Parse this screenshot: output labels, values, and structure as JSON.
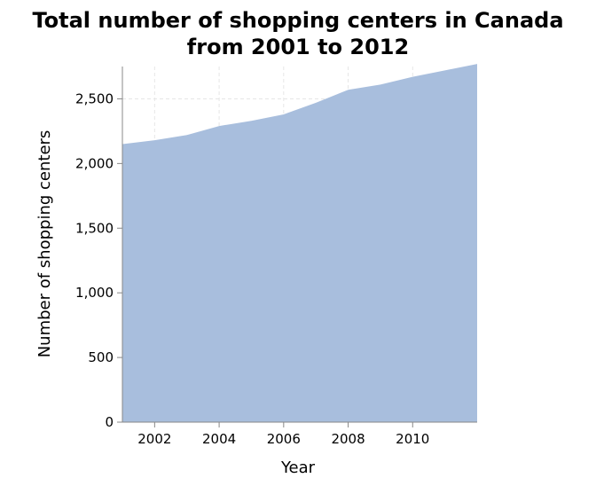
{
  "chart_data": {
    "type": "area",
    "title": [
      "Total number of shopping centers in Canada",
      "from 2001 to 2012"
    ],
    "xlabel": "Year",
    "ylabel": "Number of shopping centers",
    "x": [
      2001,
      2002,
      2003,
      2004,
      2005,
      2006,
      2007,
      2008,
      2009,
      2010,
      2011,
      2012
    ],
    "series": [
      {
        "values": [
          2150,
          2180,
          2220,
          2290,
          2330,
          2380,
          2470,
          2570,
          2610,
          2670,
          2720,
          2770
        ]
      }
    ],
    "xlim": [
      2001,
      2012
    ],
    "ylim": [
      0,
      2750
    ],
    "xticks": [
      2002,
      2004,
      2006,
      2008,
      2010
    ],
    "xtick_labels": [
      "2002",
      "2004",
      "2006",
      "2008",
      "2010"
    ],
    "yticks": [
      0,
      500,
      1000,
      1500,
      2000,
      2500
    ],
    "ytick_labels": [
      "0",
      "500",
      "1,000",
      "1,500",
      "2,000",
      "2,500"
    ],
    "grid": true,
    "fill_color": "#a8bedd"
  }
}
